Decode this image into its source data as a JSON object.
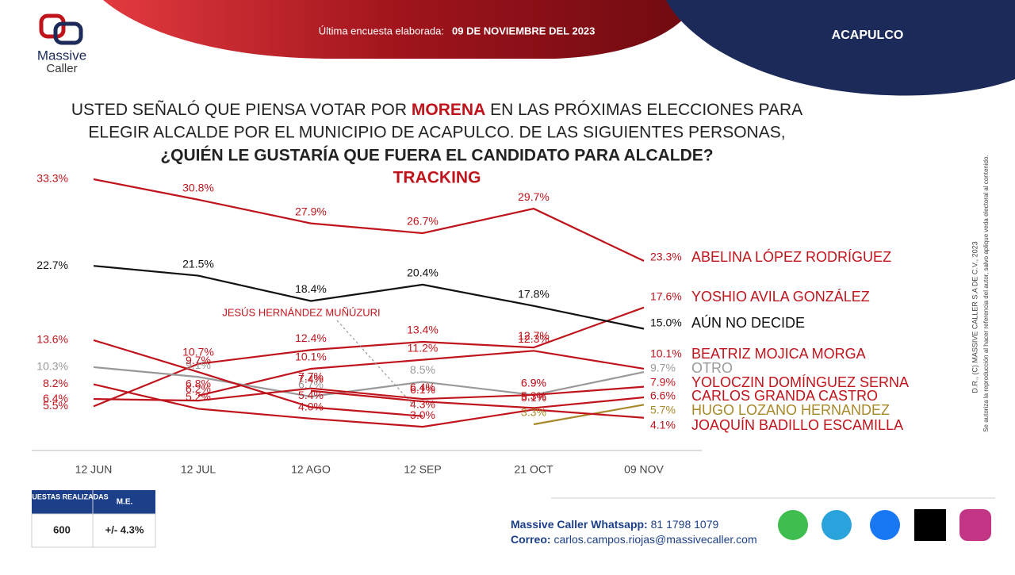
{
  "header": {
    "brand_top": "Massive",
    "brand_bottom": "Caller",
    "survey_label": "Última encuesta elaborada:",
    "survey_date": "09 DE NOVIEMBRE DEL 2023",
    "place": "ACAPULCO"
  },
  "question": {
    "line1_a": "USTED SEÑALÓ QUE PIENSA VOTAR POR",
    "line1_party": "MORENA",
    "line1_b": "EN LAS PRÓXIMAS ELECCIONES PARA",
    "line2": "ELEGIR ALCALDE POR EL MUNICIPIO DE ACAPULCO.  DE LAS SIGUIENTES PERSONAS,",
    "line3": "¿QUIÉN LE GUSTARÍA QUE FUERA EL CANDIDATO PARA ALCALDE?"
  },
  "chart_data": {
    "type": "line",
    "subtitle": "TRACKING",
    "categories": [
      "12 JUN",
      "12 JUL",
      "12 AGO",
      "12 SEP",
      "21 OCT",
      "09 NOV"
    ],
    "series": [
      {
        "name": "ABELINA LÓPEZ RODRÍGUEZ",
        "color": "#c0141c",
        "values": [
          33.3,
          30.8,
          27.9,
          26.7,
          29.7,
          23.3
        ],
        "value_labels": [
          "33.3%",
          "30.8%",
          "27.9%",
          "26.7%",
          "29.7%",
          "23.3%"
        ]
      },
      {
        "name": "YOSHIO AVILA GONZÁLEZ",
        "color": "#c0141c",
        "values": [
          5.5,
          10.7,
          12.4,
          13.4,
          12.7,
          17.6
        ],
        "value_labels": [
          "5.5%",
          "10.7%",
          "12.4%",
          "13.4%",
          "12.7%",
          "17.6%"
        ]
      },
      {
        "name": "AÚN NO DECIDE",
        "color": "#111111",
        "values": [
          22.7,
          21.5,
          18.4,
          20.4,
          17.8,
          15.0
        ],
        "value_labels": [
          "22.7%",
          "21.5%",
          "18.4%",
          "20.4%",
          "17.8%",
          "15.0%"
        ]
      },
      {
        "name": "BEATRIZ MOJICA MORGA",
        "color": "#c0141c",
        "values": [
          null,
          6.8,
          10.1,
          11.2,
          12.3,
          10.1
        ],
        "value_labels": [
          null,
          "6.8%",
          "10.1%",
          "11.2%",
          "12.3%",
          "10.1%"
        ]
      },
      {
        "name": "OTRO",
        "color": "#999999",
        "values": [
          10.3,
          9.1,
          6.7,
          8.5,
          6.9,
          9.7
        ],
        "value_labels": [
          "10.3%",
          "9.1%",
          "6.7%",
          "8.5%",
          "6.9%",
          "9.7%"
        ]
      },
      {
        "name": "YOLOCZIN DOMÍNGUEZ SERNA",
        "color": "#c0141c",
        "values": [
          6.4,
          6.2,
          7.7,
          6.4,
          6.9,
          7.9
        ],
        "value_labels": [
          "6.4%",
          "6.2%",
          "7.7%",
          "6.4%",
          "6.9%",
          "7.9%"
        ]
      },
      {
        "name": "CARLOS GRANDA CASTRO",
        "color": "#c0141c",
        "values": [
          null,
          null,
          7.4,
          6.1,
          5.3,
          6.6
        ],
        "value_labels": [
          null,
          null,
          "7.4%",
          "6.1%",
          "5.3%",
          "6.6%"
        ]
      },
      {
        "name": "HUGO LOZANO HERNANDEZ",
        "color": "#a8892a",
        "values": [
          null,
          null,
          null,
          null,
          3.3,
          5.7
        ],
        "value_labels": [
          null,
          null,
          null,
          null,
          "3.3%",
          "5.7%"
        ]
      },
      {
        "name": "JOAQUÍN BADILLO ESCAMILLA",
        "color": "#c0141c",
        "values": [
          8.2,
          5.2,
          4.0,
          3.0,
          5.1,
          4.1
        ],
        "value_labels": [
          "8.2%",
          "5.2%",
          "4.0%",
          "3.0%",
          "5.1%",
          "4.1%"
        ]
      },
      {
        "name": "JESÚS HERNÁNDEZ MUÑÚZURI",
        "color": "#c0141c",
        "values": [
          13.6,
          9.7,
          5.4,
          4.3,
          null,
          null
        ],
        "value_labels": [
          "13.6%",
          "9.7%",
          "5.4%",
          "4.3%",
          null,
          null
        ]
      }
    ]
  },
  "table": {
    "col1": "ENCUESTAS REALIZADAS",
    "col2": "M.E.",
    "val1": "600",
    "val2": "+/- 4.3%"
  },
  "footer": {
    "whatsapp_label": "Massive Caller Whatsapp:",
    "whatsapp": "81 1798 1079",
    "mail_label": "Correo:",
    "mail": "carlos.campos.riojas@massivecaller.com"
  },
  "legal": {
    "line1": "D.R., (C) MASSIVE CALLER S.A DE C.V., 2023",
    "line2": "Se autoriza la reproducción al hacer referencia del autor, salvo aplique veda electoral al contenido."
  }
}
